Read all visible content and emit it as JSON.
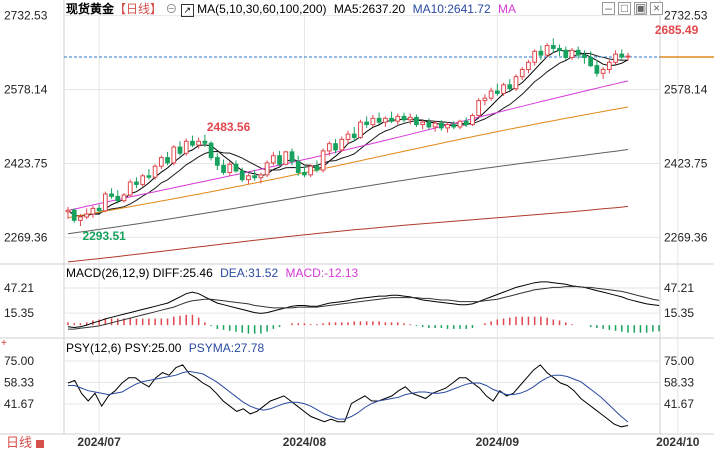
{
  "title": "现货黄金",
  "period": "【日线】",
  "footer_period": "日线",
  "main_legend": {
    "ma_label": "MA(5,10,30,60,100,200)",
    "ma5": "MA5:2637.20",
    "ma10": "MA10:2641.72",
    "ma_more": "MA"
  },
  "macd_legend": {
    "label": "MACD(26,12,9)",
    "diff": "DIFF:25.46",
    "dea": "DEA:31.52",
    "macd": "MACD:-12.13"
  },
  "psy_legend": {
    "label": "PSY(12,6)",
    "psy": "PSY:25.00",
    "psyma": "PSYMA:27.78"
  },
  "colors": {
    "up": "#e0474c",
    "down": "#17a25e",
    "ma5": "#000000",
    "ma10": "#1b1b1b",
    "ma30": "#d63ad6",
    "ma60": "#e08a18",
    "ma100": "#606060",
    "ma200": "#b23a2a",
    "diff": "#000000",
    "dea": "#333333",
    "macd_pos": "#e0474c",
    "macd_neg": "#17a25e",
    "psy": "#000000",
    "psyma": "#2a4aa0",
    "last_price_line": "#2a79c8",
    "grid": "#e6e6e6"
  },
  "chart_data": [
    {
      "type": "candlestick",
      "name": "price",
      "yticks": [
        "2732.53",
        "2578.14",
        "2423.75",
        "2269.36"
      ],
      "ytick_values": [
        2732.53,
        2578.14,
        2423.75,
        2269.36
      ],
      "ylim": [
        2218,
        2740
      ],
      "xticks": [
        "2024/07",
        "2024/08",
        "2024/09",
        "2024/10"
      ],
      "xtick_index": [
        5,
        38,
        69,
        98
      ],
      "annotations": [
        {
          "text": "2685.49",
          "index": 94,
          "value": 2685.49,
          "kind": "high"
        },
        {
          "text": "2483.56",
          "index": 22,
          "value": 2483.56,
          "kind": "high"
        },
        {
          "text": "2293.51",
          "index": 2,
          "value": 2293.51,
          "kind": "low"
        }
      ],
      "last_price": 2646,
      "ohlc": [
        [
          2323,
          2333,
          2308,
          2326
        ],
        [
          2326,
          2330,
          2300,
          2305
        ],
        [
          2305,
          2318,
          2293,
          2312
        ],
        [
          2312,
          2330,
          2308,
          2318
        ],
        [
          2318,
          2335,
          2310,
          2330
        ],
        [
          2330,
          2338,
          2322,
          2325
        ],
        [
          2325,
          2365,
          2322,
          2360
        ],
        [
          2360,
          2372,
          2350,
          2355
        ],
        [
          2355,
          2368,
          2340,
          2346
        ],
        [
          2346,
          2362,
          2342,
          2358
        ],
        [
          2358,
          2390,
          2355,
          2385
        ],
        [
          2385,
          2395,
          2372,
          2380
        ],
        [
          2380,
          2402,
          2375,
          2398
        ],
        [
          2398,
          2412,
          2390,
          2395
        ],
        [
          2395,
          2422,
          2390,
          2418
        ],
        [
          2418,
          2440,
          2412,
          2436
        ],
        [
          2436,
          2448,
          2420,
          2425
        ],
        [
          2425,
          2462,
          2420,
          2458
        ],
        [
          2458,
          2470,
          2440,
          2445
        ],
        [
          2445,
          2476,
          2440,
          2470
        ],
        [
          2470,
          2482,
          2458,
          2462
        ],
        [
          2462,
          2478,
          2455,
          2470
        ],
        [
          2470,
          2484,
          2458,
          2466
        ],
        [
          2466,
          2470,
          2430,
          2436
        ],
        [
          2436,
          2445,
          2410,
          2420
        ],
        [
          2420,
          2432,
          2400,
          2405
        ],
        [
          2405,
          2428,
          2398,
          2422
        ],
        [
          2422,
          2430,
          2405,
          2408
        ],
        [
          2408,
          2415,
          2385,
          2390
        ],
        [
          2390,
          2402,
          2380,
          2398
        ],
        [
          2398,
          2410,
          2388,
          2394
        ],
        [
          2394,
          2405,
          2382,
          2400
        ],
        [
          2400,
          2430,
          2395,
          2425
        ],
        [
          2425,
          2448,
          2420,
          2440
        ],
        [
          2440,
          2450,
          2418,
          2422
        ],
        [
          2422,
          2450,
          2420,
          2448
        ],
        [
          2448,
          2455,
          2420,
          2428
        ],
        [
          2428,
          2440,
          2398,
          2405
        ],
        [
          2405,
          2418,
          2395,
          2400
        ],
        [
          2400,
          2422,
          2395,
          2418
        ],
        [
          2418,
          2430,
          2405,
          2410
        ],
        [
          2410,
          2455,
          2405,
          2450
        ],
        [
          2450,
          2470,
          2440,
          2465
        ],
        [
          2465,
          2475,
          2445,
          2452
        ],
        [
          2452,
          2480,
          2448,
          2474
        ],
        [
          2474,
          2492,
          2465,
          2485
        ],
        [
          2485,
          2500,
          2470,
          2478
        ],
        [
          2478,
          2515,
          2475,
          2510
        ],
        [
          2510,
          2522,
          2498,
          2505
        ],
        [
          2505,
          2525,
          2500,
          2518
        ],
        [
          2518,
          2530,
          2505,
          2510
        ],
        [
          2510,
          2522,
          2500,
          2518
        ],
        [
          2518,
          2532,
          2508,
          2512
        ],
        [
          2512,
          2528,
          2505,
          2522
        ],
        [
          2522,
          2530,
          2510,
          2515
        ],
        [
          2515,
          2528,
          2505,
          2520
        ],
        [
          2520,
          2526,
          2500,
          2505
        ],
        [
          2505,
          2515,
          2495,
          2510
        ],
        [
          2510,
          2518,
          2495,
          2500
        ],
        [
          2500,
          2512,
          2490,
          2508
        ],
        [
          2508,
          2514,
          2492,
          2498
        ],
        [
          2498,
          2510,
          2488,
          2505
        ],
        [
          2505,
          2512,
          2495,
          2500
        ],
        [
          2500,
          2515,
          2495,
          2512
        ],
        [
          2512,
          2520,
          2500,
          2505
        ],
        [
          2505,
          2528,
          2502,
          2524
        ],
        [
          2524,
          2560,
          2520,
          2555
        ],
        [
          2555,
          2568,
          2545,
          2560
        ],
        [
          2560,
          2582,
          2555,
          2575
        ],
        [
          2575,
          2590,
          2565,
          2570
        ],
        [
          2570,
          2592,
          2565,
          2588
        ],
        [
          2588,
          2600,
          2575,
          2580
        ],
        [
          2580,
          2610,
          2575,
          2605
        ],
        [
          2605,
          2625,
          2598,
          2620
        ],
        [
          2620,
          2640,
          2612,
          2635
        ],
        [
          2635,
          2662,
          2628,
          2658
        ],
        [
          2658,
          2670,
          2640,
          2650
        ],
        [
          2650,
          2675,
          2645,
          2670
        ],
        [
          2670,
          2685,
          2655,
          2664
        ],
        [
          2664,
          2672,
          2648,
          2660
        ],
        [
          2660,
          2668,
          2640,
          2645
        ],
        [
          2645,
          2665,
          2640,
          2660
        ],
        [
          2660,
          2668,
          2642,
          2650
        ],
        [
          2650,
          2660,
          2632,
          2645
        ],
        [
          2645,
          2658,
          2625,
          2628
        ],
        [
          2628,
          2640,
          2605,
          2612
        ],
        [
          2612,
          2625,
          2600,
          2620
        ],
        [
          2620,
          2640,
          2612,
          2635
        ],
        [
          2635,
          2660,
          2630,
          2652
        ],
        [
          2652,
          2662,
          2640,
          2646
        ],
        [
          2646,
          2655,
          2638,
          2648
        ]
      ],
      "ma": [
        {
          "name": "MA5",
          "period": 5
        },
        {
          "name": "MA10",
          "period": 10
        },
        {
          "name": "MA30",
          "values_start": 2322,
          "values_end": 2592
        },
        {
          "name": "MA60",
          "values_start": 2310,
          "values_end": 2540
        },
        {
          "name": "MA100",
          "values_start": 2280,
          "values_end": 2455
        },
        {
          "name": "MA200",
          "values_start": 2222,
          "values_end": 2338
        }
      ]
    },
    {
      "type": "macd",
      "name": "MACD(26,12,9)",
      "yticks": [
        "47.21",
        "15.35"
      ],
      "ytick_values": [
        47.21,
        15.35
      ],
      "ylim": [
        -10,
        60
      ],
      "diff": [
        -2,
        -3,
        -2,
        0,
        3,
        5,
        8,
        10,
        12,
        14,
        16,
        18,
        20,
        22,
        24,
        26,
        28,
        32,
        36,
        40,
        42,
        40,
        36,
        32,
        28,
        26,
        24,
        22,
        20,
        18,
        16,
        15,
        16,
        18,
        20,
        22,
        24,
        25,
        25,
        24,
        24,
        26,
        28,
        29,
        30,
        31,
        33,
        34,
        35,
        36,
        37,
        37,
        38,
        38,
        37,
        36,
        34,
        32,
        31,
        30,
        29,
        28,
        27,
        26,
        26,
        27,
        30,
        33,
        36,
        39,
        42,
        45,
        48,
        50,
        52,
        54,
        55,
        55,
        54,
        53,
        52,
        50,
        49,
        48,
        46,
        44,
        42,
        40,
        38,
        36,
        33,
        31,
        29,
        27,
        26,
        25
      ],
      "dea": [
        -5,
        -5,
        -4,
        -3,
        -2,
        -1,
        1,
        3,
        5,
        7,
        9,
        11,
        13,
        15,
        17,
        19,
        21,
        23,
        26,
        29,
        31,
        32,
        33,
        33,
        32,
        31,
        30,
        29,
        28,
        27,
        25,
        24,
        23,
        22,
        22,
        22,
        22,
        23,
        23,
        23,
        23,
        24,
        25,
        26,
        27,
        28,
        29,
        30,
        31,
        32,
        33,
        34,
        35,
        35,
        35,
        35,
        35,
        34,
        34,
        33,
        32,
        32,
        31,
        30,
        30,
        30,
        30,
        31,
        32,
        33,
        35,
        37,
        39,
        41,
        43,
        45,
        46,
        47,
        48,
        48,
        49,
        49,
        49,
        48,
        48,
        47,
        46,
        45,
        44,
        43,
        41,
        39,
        37,
        35,
        33,
        31.52
      ]
    },
    {
      "type": "line",
      "name": "PSY(12,6)",
      "yticks": [
        "75.00",
        "58.33",
        "41.67"
      ],
      "ytick_values": [
        75.0,
        58.33,
        41.67
      ],
      "ylim": [
        20,
        82
      ],
      "psy": [
        58,
        60,
        50,
        44,
        50,
        40,
        48,
        52,
        58,
        62,
        62,
        58,
        55,
        62,
        66,
        64,
        70,
        72,
        65,
        62,
        58,
        55,
        50,
        44,
        40,
        36,
        38,
        34,
        36,
        40,
        44,
        46,
        48,
        44,
        40,
        36,
        32,
        30,
        28,
        30,
        28,
        28,
        42,
        45,
        48,
        44,
        44,
        46,
        48,
        52,
        55,
        50,
        48,
        46,
        50,
        52,
        54,
        58,
        62,
        62,
        58,
        54,
        48,
        44,
        52,
        48,
        50,
        56,
        62,
        68,
        72,
        66,
        62,
        58,
        56,
        52,
        46,
        42,
        38,
        34,
        30,
        26,
        24,
        25
      ],
      "psyma": [
        56,
        56,
        54,
        52,
        51,
        50,
        49,
        50,
        51,
        54,
        57,
        59,
        60,
        61,
        62,
        63,
        64,
        66,
        67,
        66,
        65,
        62,
        59,
        55,
        51,
        47,
        43,
        40,
        38,
        37,
        38,
        40,
        42,
        43,
        43,
        42,
        40,
        37,
        34,
        32,
        30,
        30,
        32,
        35,
        39,
        42,
        44,
        45,
        46,
        47,
        49,
        50,
        51,
        51,
        50,
        50,
        51,
        53,
        55,
        57,
        58,
        58,
        56,
        53,
        51,
        49,
        49,
        50,
        52,
        55,
        59,
        62,
        64,
        64,
        63,
        61,
        59,
        55,
        51,
        47,
        42,
        37,
        32,
        27.78
      ]
    }
  ]
}
